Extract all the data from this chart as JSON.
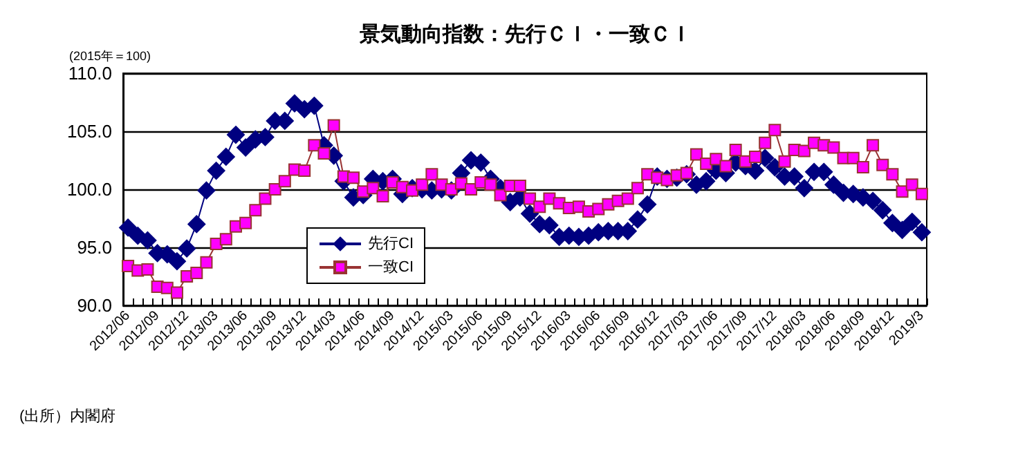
{
  "chart_data": {
    "type": "line",
    "title": "景気動向指数：先行ＣＩ・一致ＣＩ",
    "ylabel": "(2015年＝100)",
    "annotations": [
      "(出所）内閣府"
    ],
    "categories": [
      "2012/06",
      null,
      null,
      "2012/09",
      null,
      null,
      "2012/12",
      null,
      null,
      "2013/03",
      null,
      null,
      "2013/06",
      null,
      null,
      "2013/09",
      null,
      null,
      "2013/12",
      null,
      null,
      "2014/03",
      null,
      null,
      "2014/06",
      null,
      null,
      "2014/09",
      null,
      null,
      "2014/12",
      null,
      null,
      "2015/03",
      null,
      null,
      "2015/06",
      null,
      null,
      "2015/09",
      null,
      null,
      "2015/12",
      null,
      null,
      "2016/03",
      null,
      null,
      "2016/06",
      null,
      null,
      "2016/09",
      null,
      null,
      "2016/12",
      null,
      null,
      "2017/03",
      null,
      null,
      "2017/06",
      null,
      null,
      "2017/09",
      null,
      null,
      "2017/12",
      null,
      null,
      "2018/03",
      null,
      null,
      "2018/06",
      null,
      null,
      "2018/09",
      null,
      null,
      "2018/12",
      null,
      null,
      "2019/3"
    ],
    "series": [
      {
        "name": "先行CI",
        "color": "#000080",
        "marker": "diamond",
        "values": [
          96.7,
          96.0,
          95.6,
          94.5,
          94.4,
          93.8,
          94.9,
          97.0,
          99.9,
          101.6,
          102.8,
          104.7,
          103.6,
          104.3,
          104.5,
          105.9,
          105.9,
          107.4,
          106.9,
          107.2,
          103.8,
          102.9,
          100.7,
          99.3,
          99.5,
          100.9,
          100.7,
          100.9,
          99.6,
          100.1,
          100.0,
          99.9,
          100.0,
          99.9,
          101.4,
          102.5,
          102.3,
          100.9,
          100.1,
          98.9,
          99.3,
          97.9,
          97.0,
          96.9,
          95.9,
          96.0,
          95.9,
          96.0,
          96.3,
          96.4,
          96.4,
          96.4,
          97.4,
          98.7,
          101.1,
          100.9,
          101.0,
          101.3,
          100.4,
          100.7,
          101.6,
          101.4,
          102.3,
          102.0,
          101.6,
          102.7,
          101.9,
          101.1,
          101.1,
          100.1,
          101.5,
          101.5,
          100.4,
          99.7,
          99.6,
          99.3,
          99.0,
          98.2,
          97.1,
          96.5,
          97.2,
          96.3
        ]
      },
      {
        "name": "一致CI",
        "color": "#ff00ff",
        "marker": "square",
        "values": [
          93.4,
          93.0,
          93.1,
          91.6,
          91.5,
          91.1,
          92.5,
          92.8,
          93.7,
          95.3,
          95.7,
          96.8,
          97.1,
          98.2,
          99.2,
          100.0,
          100.7,
          101.7,
          101.6,
          103.8,
          103.1,
          105.5,
          101.1,
          101.0,
          99.8,
          100.1,
          99.4,
          100.6,
          100.2,
          99.9,
          100.4,
          101.3,
          100.4,
          100.0,
          100.5,
          100.0,
          100.6,
          100.4,
          99.5,
          100.3,
          100.3,
          99.2,
          98.5,
          99.2,
          98.8,
          98.4,
          98.5,
          98.1,
          98.3,
          98.7,
          99.0,
          99.2,
          100.1,
          101.3,
          101.0,
          100.8,
          101.2,
          101.4,
          103.0,
          102.2,
          102.6,
          102.0,
          103.4,
          102.4,
          102.8,
          104.0,
          105.1,
          102.4,
          103.4,
          103.3,
          104.0,
          103.8,
          103.6,
          102.7,
          102.7,
          101.9,
          103.8,
          102.1,
          101.3,
          99.8,
          100.4,
          99.6
        ]
      }
    ],
    "ylim": [
      90,
      110
    ],
    "yticks": [
      {
        "value": 90,
        "label": "90.0"
      },
      {
        "value": 95,
        "label": "95.0"
      },
      {
        "value": 100,
        "label": "100.0"
      },
      {
        "value": 105,
        "label": "105.0"
      },
      {
        "value": 110,
        "label": "110.0"
      }
    ],
    "grid": "y",
    "legend": "bottom left",
    "line_style": "solid"
  }
}
